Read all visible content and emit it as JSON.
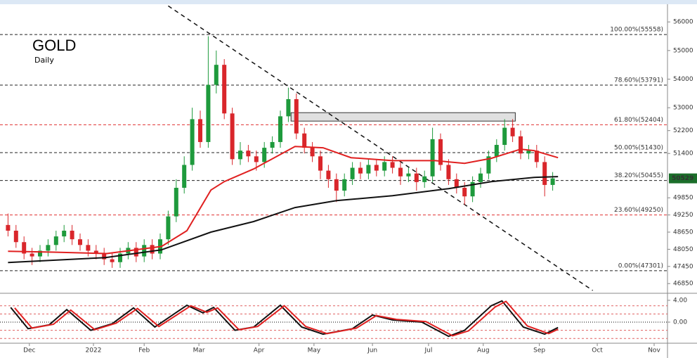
{
  "chart_data": {
    "type": "candlestick",
    "title": "GOLD",
    "subtitle": "Daily",
    "up_color": "#1e9a3c",
    "down_color": "#d9262b",
    "x": [
      3,
      6,
      9,
      12,
      15,
      18,
      21,
      24,
      27,
      30,
      33,
      36,
      39,
      42,
      45,
      48,
      51,
      54,
      57,
      60,
      63,
      66,
      69,
      72,
      75,
      78,
      81,
      84,
      87,
      90,
      93,
      96,
      99,
      102,
      105,
      108,
      111,
      114,
      117,
      120,
      123,
      126,
      129,
      132,
      135,
      138,
      141,
      144,
      147,
      150,
      153,
      156,
      159,
      162,
      165,
      168,
      171,
      174,
      177,
      180,
      183,
      186,
      189,
      192,
      195,
      198,
      201,
      204,
      207
    ],
    "open": [
      48900,
      48700,
      48300,
      47900,
      47800,
      48000,
      48200,
      48500,
      48700,
      48400,
      48200,
      48000,
      47900,
      47700,
      47600,
      47900,
      48100,
      47800,
      48200,
      47900,
      48400,
      49200,
      50200,
      51000,
      52600,
      51800,
      53800,
      54500,
      52800,
      51200,
      51500,
      51300,
      51100,
      51600,
      51800,
      52700,
      53300,
      52100,
      51600,
      51300,
      50800,
      50500,
      50100,
      50500,
      50900,
      50700,
      51000,
      50800,
      51100,
      50900,
      50600,
      50700,
      50400,
      50600,
      51900,
      51000,
      50500,
      50200,
      49900,
      50400,
      50700,
      51300,
      51700,
      52300,
      52000,
      51400,
      51500,
      51100,
      50300
    ],
    "high": [
      49300,
      48900,
      48500,
      48100,
      48200,
      48400,
      48700,
      48900,
      48900,
      48600,
      48400,
      48200,
      48100,
      47900,
      48100,
      48300,
      48300,
      48400,
      48400,
      48600,
      49400,
      50500,
      51300,
      53000,
      52900,
      55500,
      55000,
      54700,
      53000,
      51800,
      51700,
      51500,
      51800,
      52000,
      52900,
      53700,
      53500,
      52300,
      51800,
      51500,
      51000,
      50700,
      50700,
      51100,
      51100,
      51200,
      51200,
      51300,
      51300,
      51100,
      50900,
      50900,
      50800,
      52300,
      52100,
      51200,
      50700,
      50400,
      50600,
      50900,
      51500,
      51900,
      52600,
      52600,
      52200,
      51700,
      51700,
      51300,
      50750
    ],
    "low": [
      48500,
      48100,
      47700,
      47500,
      47600,
      47800,
      48000,
      48300,
      48200,
      48000,
      47800,
      47700,
      47500,
      47400,
      47400,
      47700,
      47600,
      47600,
      47700,
      47700,
      48200,
      49000,
      50000,
      50800,
      51600,
      51600,
      53500,
      52600,
      51000,
      51000,
      51100,
      50800,
      50900,
      51400,
      51600,
      52500,
      51900,
      51400,
      51100,
      50500,
      50200,
      49700,
      49900,
      50300,
      50500,
      50500,
      50600,
      50600,
      50700,
      50300,
      50400,
      50100,
      50200,
      50400,
      50800,
      50300,
      50000,
      49600,
      49700,
      50200,
      50500,
      51100,
      51500,
      51800,
      51200,
      51200,
      50900,
      49900,
      50100
    ],
    "close": [
      48700,
      48300,
      47900,
      47800,
      48000,
      48200,
      48500,
      48700,
      48400,
      48200,
      48000,
      47900,
      47700,
      47600,
      47900,
      48100,
      47800,
      48200,
      47900,
      48400,
      49200,
      50200,
      51000,
      52600,
      51800,
      53800,
      54500,
      52800,
      51200,
      51500,
      51300,
      51100,
      51600,
      51800,
      52700,
      53300,
      52100,
      51600,
      51300,
      50800,
      50500,
      50100,
      50500,
      50900,
      50700,
      51000,
      50800,
      51100,
      50900,
      50600,
      50700,
      50400,
      50600,
      51900,
      51000,
      50500,
      50200,
      49900,
      50400,
      50700,
      51300,
      51700,
      52300,
      52000,
      51400,
      51500,
      51100,
      50300,
      50529
    ],
    "xlim": [
      0,
      250
    ],
    "xticks": [
      {
        "value": 11,
        "label": "Dec"
      },
      {
        "value": 35,
        "label": "2022"
      },
      {
        "value": 54,
        "label": "Feb"
      },
      {
        "value": 74.5,
        "label": "Mar"
      },
      {
        "value": 97,
        "label": "Apr"
      },
      {
        "value": 117.6,
        "label": "May"
      },
      {
        "value": 139.5,
        "label": "Jun"
      },
      {
        "value": 160.5,
        "label": "Jul"
      },
      {
        "value": 181,
        "label": "Aug"
      },
      {
        "value": 202,
        "label": "Sep"
      },
      {
        "value": 223.7,
        "label": "Oct"
      },
      {
        "value": 245,
        "label": "Nov"
      }
    ],
    "ylim": [
      46560,
      56570
    ],
    "yticks": [
      56000,
      55000,
      54000,
      53000,
      52200,
      51400,
      49850,
      49250,
      48650,
      48050,
      47450,
      46850
    ],
    "last_price": 50529,
    "last_price_color": "#1b6e2a",
    "moving_averages": [
      {
        "color": "#e02020",
        "x": [
          3,
          20,
          40,
          60.5,
          70,
          79,
          84,
          95,
          110.5,
          121,
          131.5,
          147,
          163,
          174,
          184,
          195,
          200,
          209
        ],
        "values": [
          47982,
          47950,
          47900,
          48150,
          48700,
          50122,
          50417,
          50860,
          51647,
          51600,
          51253,
          51150,
          51150,
          51057,
          51230,
          51550,
          51500,
          51253
        ]
      },
      {
        "color": "#111111",
        "x": [
          3,
          39.5,
          60.5,
          79,
          95,
          110.5,
          126,
          147,
          168,
          184,
          200,
          209
        ],
        "values": [
          47589,
          47760,
          48030,
          48650,
          49020,
          49510,
          49750,
          49925,
          50170,
          50415,
          50565,
          50590
        ]
      }
    ],
    "fib_levels": [
      {
        "value": 55558,
        "label": "100.00%(55558)",
        "color": "#222222"
      },
      {
        "value": 53791,
        "label": "78.60%(53791)",
        "color": "#222222"
      },
      {
        "value": 52404,
        "label": "61.80%(52404)",
        "color": "#e03030"
      },
      {
        "value": 51430,
        "label": "50.00%(51430)",
        "color": "#222222"
      },
      {
        "value": 50455,
        "label": "38.20%(50455)",
        "color": "#222222"
      },
      {
        "value": 49250,
        "label": "23.60%(49250)",
        "color": "#e03030"
      },
      {
        "value": 47301,
        "label": "0.00%(47301)",
        "color": "#222222"
      }
    ],
    "trendline": {
      "x": [
        63,
        222
      ],
      "values": [
        56560,
        46610
      ]
    },
    "zone": {
      "x": [
        109,
        193
      ],
      "values": [
        52532,
        52827
      ]
    },
    "oscillator": {
      "ylim": [
        -3.87,
        4.9
      ],
      "yticks": [
        {
          "value": 4,
          "label": "4.00"
        },
        {
          "value": 0,
          "label": "0.00"
        }
      ],
      "levels": [
        3,
        1.5,
        -1.5,
        -3
      ],
      "series": [
        {
          "color": "#111111",
          "x": [
            4,
            10.5,
            18.4,
            25,
            34,
            42,
            50,
            58,
            70,
            76,
            80,
            88,
            95,
            105,
            113,
            121,
            132,
            139.5,
            147,
            158,
            168,
            174,
            184,
            188,
            196,
            204,
            209
          ],
          "values": [
            2.7,
            -1.2,
            -0.5,
            2.3,
            -1.5,
            -0.3,
            2.6,
            -0.9,
            3.1,
            1.7,
            2.7,
            -1.5,
            -0.9,
            3.1,
            -0.9,
            -2.2,
            -1.2,
            1.3,
            0.4,
            0,
            -2.6,
            -1.5,
            3.0,
            3.9,
            -0.9,
            -2.2,
            -1.0
          ]
        },
        {
          "color": "#e02020",
          "x": [
            5.5,
            12,
            20,
            26.5,
            35.5,
            43.5,
            51.5,
            59.5,
            71.5,
            77.5,
            81.5,
            89.5,
            96.5,
            106.5,
            114.5,
            122.5,
            133.5,
            141,
            148.5,
            159.5,
            169.5,
            175.5,
            185.5,
            189.5,
            197.5,
            205.5,
            209
          ],
          "values": [
            2.6,
            -1.1,
            -0.4,
            2.2,
            -1.4,
            -0.2,
            2.5,
            -0.8,
            3.0,
            1.8,
            2.6,
            -1.4,
            -0.8,
            3.0,
            -0.8,
            -2.1,
            -1.1,
            1.2,
            0.5,
            0.1,
            -2.5,
            -1.6,
            2.8,
            3.8,
            -0.7,
            -2.1,
            -1.3
          ]
        }
      ]
    }
  }
}
